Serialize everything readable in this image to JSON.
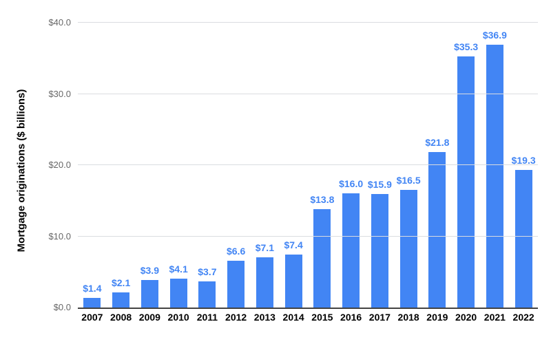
{
  "chart_data": {
    "type": "bar",
    "title": "",
    "xlabel": "",
    "ylabel": "Mortgage originations ($ billions)",
    "categories": [
      "2007",
      "2008",
      "2009",
      "2010",
      "2011",
      "2012",
      "2013",
      "2014",
      "2015",
      "2016",
      "2017",
      "2018",
      "2019",
      "2020",
      "2021",
      "2022"
    ],
    "values": [
      1.4,
      2.1,
      3.9,
      4.1,
      3.7,
      6.6,
      7.1,
      7.4,
      13.8,
      16.0,
      15.9,
      16.5,
      21.8,
      35.3,
      36.9,
      19.3
    ],
    "data_labels": [
      "$1.4",
      "$2.1",
      "$3.9",
      "$4.1",
      "$3.7",
      "$6.6",
      "$7.1",
      "$7.4",
      "$13.8",
      "$16.0",
      "$15.9",
      "$16.5",
      "$21.8",
      "$35.3",
      "$36.9",
      "$19.3"
    ],
    "ylim": [
      0,
      40
    ],
    "y_ticks": [
      {
        "value": 0,
        "label": "$0.0"
      },
      {
        "value": 10,
        "label": "$10.0"
      },
      {
        "value": 20,
        "label": "$20.0"
      },
      {
        "value": 30,
        "label": "$30.0"
      },
      {
        "value": 40,
        "label": "$40.0"
      }
    ],
    "grid": "horizontal",
    "legend": "none"
  },
  "colors": {
    "bar": "#4285f4",
    "data_label": "#4285f4",
    "y_tick_label": "#666666",
    "x_tick_label": "#000000",
    "axis_title": "#000000",
    "gridline": "#dadce0",
    "axis_line": "#424242",
    "background": "#ffffff"
  }
}
